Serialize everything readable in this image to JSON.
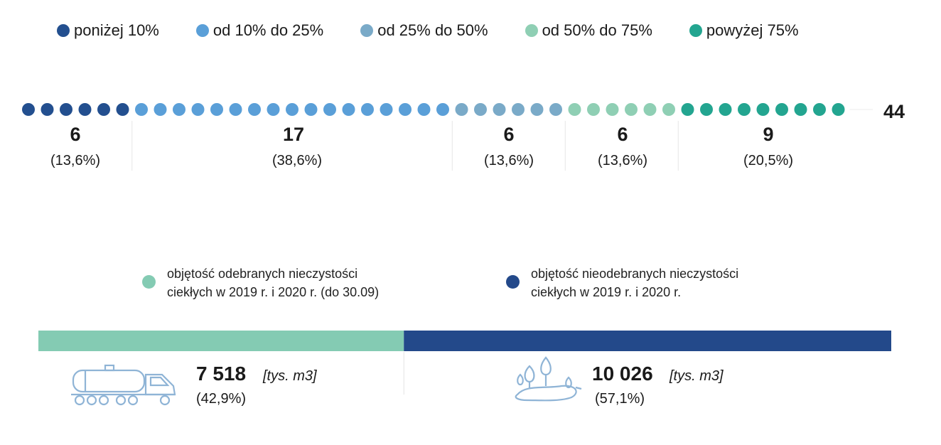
{
  "colors": {
    "c1": "#234f8f",
    "c2": "#5a9fd8",
    "c3": "#7aaac8",
    "c4": "#8fcfb4",
    "c5": "#23a590",
    "received": "#84cbb3",
    "not_received": "#23498a",
    "icon": "#8fb4d6"
  },
  "legend": [
    {
      "label": "poniżej 10%",
      "color": "#234f8f"
    },
    {
      "label": "od 10% do 25%",
      "color": "#5a9fd8"
    },
    {
      "label": "od 25% do 50%",
      "color": "#7aaac8"
    },
    {
      "label": "od 50% do 75%",
      "color": "#8fcfb4"
    },
    {
      "label": "powyżej 75%",
      "color": "#23a590"
    }
  ],
  "chart_data": [
    {
      "type": "dot-plot",
      "total": "44",
      "categories": [
        "poniżej 10%",
        "od 10% do 25%",
        "od 25% do 50%",
        "od 50% do 75%",
        "powyżej 75%"
      ],
      "values": [
        6,
        17,
        6,
        6,
        9
      ],
      "percent_labels": [
        "(13,6%)",
        "(38,6%)",
        "(13,6%)",
        "(13,6%)",
        "(20,5%)"
      ],
      "value_labels": [
        "6",
        "17",
        "6",
        "6",
        "9"
      ]
    },
    {
      "type": "bar",
      "orientation": "horizontal-stacked",
      "categories": [
        "objętość odebranych nieczystości ciekłych w 2019 r. i 2020 r. (do 30.09)",
        "objętość nieodebranych nieczystości ciekłych w 2019 r. i 2020 r."
      ],
      "values": [
        7518,
        10026
      ],
      "value_labels": [
        "7 518",
        "10 026"
      ],
      "unit": "[tys. m3]",
      "percent_labels": [
        "(42,9%)",
        "(57,1%)"
      ]
    }
  ],
  "legend_bottom": {
    "received": {
      "line1": "objętość odebranych nieczystości",
      "line2": "ciekłych w 2019 r. i 2020 r. (do 30.09)",
      "icon": "tanker-truck-icon"
    },
    "not_received": {
      "line1": "objętość nieodebranych nieczystości",
      "line2": "ciekłych w 2019 r. i 2020 r.",
      "icon": "puddle-trees-icon"
    }
  }
}
